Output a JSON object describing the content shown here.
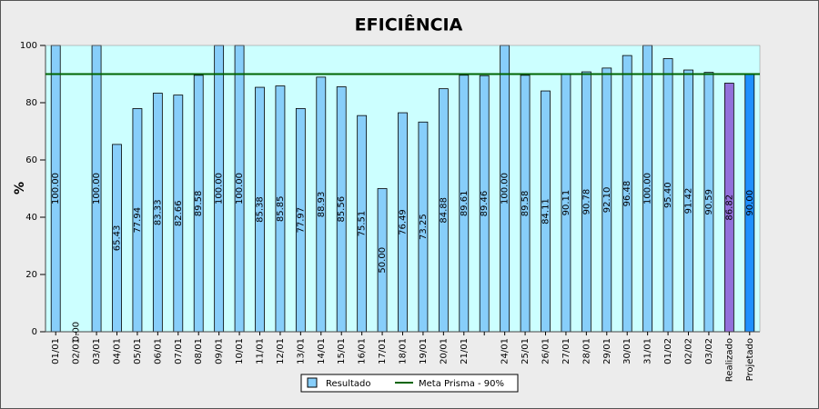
{
  "chart_data": {
    "type": "bar",
    "title": "EFICIÊNCIA",
    "y_label": "%",
    "categories": [
      "01/01",
      "02/01",
      "03/01",
      "04/01",
      "05/01",
      "06/01",
      "07/01",
      "08/01",
      "09/01",
      "10/01",
      "11/01",
      "12/01",
      "13/01",
      "14/01",
      "15/01",
      "16/01",
      "17/01",
      "18/01",
      "19/01",
      "20/01",
      "21/01",
      null,
      "24/01",
      "25/01",
      "26/01",
      "27/01",
      "28/01",
      "29/01",
      "30/01",
      "31/01",
      "01/02",
      "02/02",
      "03/02",
      "Realizado",
      "Projetado"
    ],
    "series": [
      {
        "name": "Resultado",
        "color": "#87cefa",
        "values": [
          100,
          0,
          100,
          65.43,
          77.94,
          83.33,
          82.66,
          89.58,
          100,
          100,
          85.38,
          85.85,
          77.97,
          88.93,
          85.56,
          75.51,
          50,
          76.49,
          73.25,
          84.88,
          89.61,
          89.46,
          100,
          89.58,
          84.11,
          90.11,
          90.78,
          92.1,
          96.48,
          100,
          95.4,
          91.42,
          90.59,
          86.82,
          90
        ],
        "value_labels": [
          "100.00",
          "0.00",
          "100.00",
          "65.43",
          "77.94",
          "83.33",
          "82.66",
          "89.58",
          "100.00",
          "100.00",
          "85.38",
          "85.85",
          "77.97",
          "88.93",
          "85.56",
          "75.51",
          "50.00",
          "76.49",
          "73.25",
          "84.88",
          "89.61",
          "89.46",
          "100.00",
          "89.58",
          "84.11",
          "90.11",
          "90.78",
          "92.10",
          "96.48",
          "100.00",
          "95.40",
          "91.42",
          "90.59",
          "86.82",
          "90.00"
        ],
        "colors": [
          "#87cefa",
          "#87cefa",
          "#87cefa",
          "#87cefa",
          "#87cefa",
          "#87cefa",
          "#87cefa",
          "#87cefa",
          "#87cefa",
          "#87cefa",
          "#87cefa",
          "#87cefa",
          "#87cefa",
          "#87cefa",
          "#87cefa",
          "#87cefa",
          "#87cefa",
          "#87cefa",
          "#87cefa",
          "#87cefa",
          "#87cefa",
          "#87cefa",
          "#87cefa",
          "#87cefa",
          "#87cefa",
          "#87cefa",
          "#87cefa",
          "#87cefa",
          "#87cefa",
          "#87cefa",
          "#87cefa",
          "#87cefa",
          "#87cefa",
          "#9370db",
          "#1e90ff"
        ]
      }
    ],
    "reference_line": {
      "name": "Meta Prisma - 90%",
      "value": 90,
      "color": "#006400"
    },
    "ylim": [
      0,
      100
    ],
    "yticks": [
      0,
      20,
      40,
      60,
      80,
      100
    ],
    "plot_background": "#ccffff"
  }
}
